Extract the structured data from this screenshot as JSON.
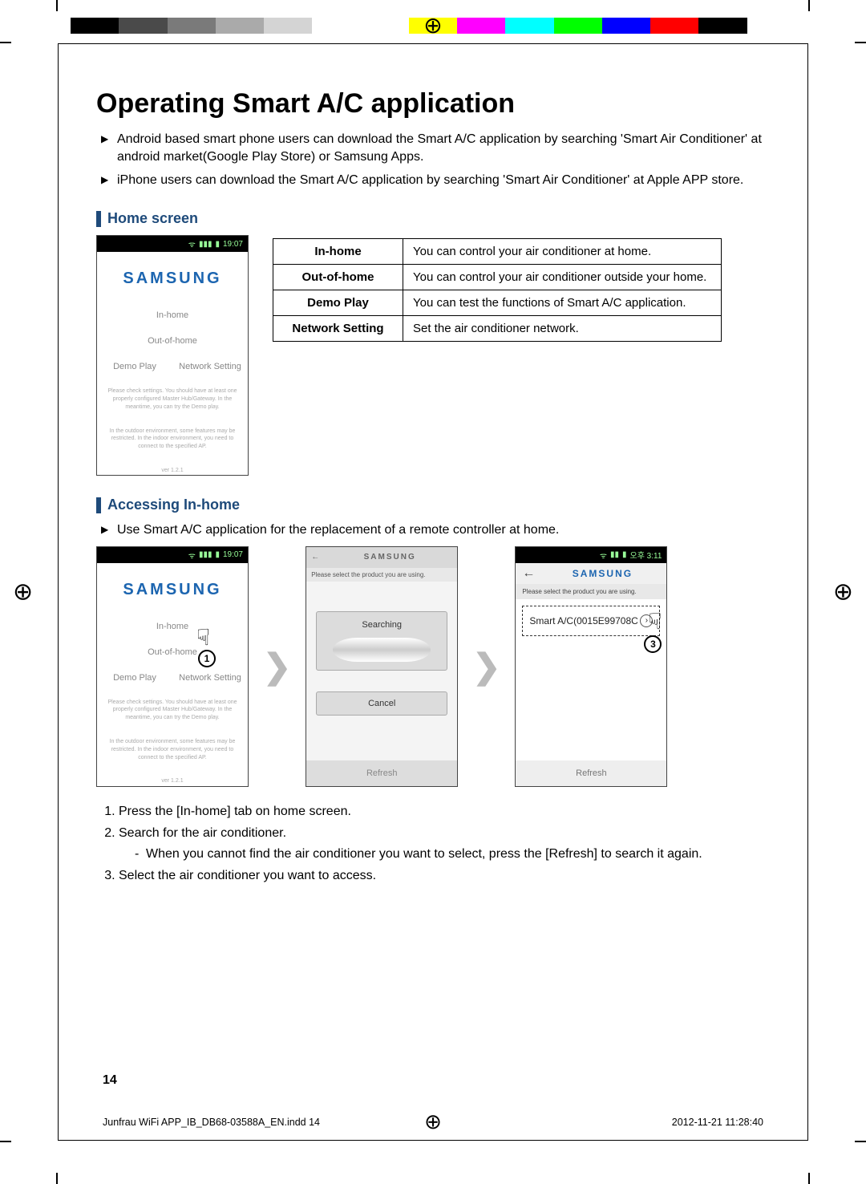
{
  "colorbar": [
    "#000000",
    "#4a4a4a",
    "#7a7a7a",
    "#aaaaaa",
    "#d4d4d4",
    "#ffffff",
    "",
    "#ffff00",
    "#ff00ff",
    "#00ffff",
    "#00ff00",
    "#0000ff",
    "#ff0000",
    "#000000",
    "#ffffff"
  ],
  "title": "Operating Smart A/C application",
  "intro": [
    "Android based smart phone users can download the Smart A/C application by searching 'Smart Air Conditioner' at android market(Google Play Store) or Samsung Apps.",
    "iPhone users can download the Smart A/C application by searching 'Smart Air Conditioner' at Apple APP store."
  ],
  "section1": {
    "heading": "Home screen",
    "phone": {
      "time": "19:07",
      "brand": "SAMSUNG",
      "btn_inhome": "In-home",
      "btn_outhome": "Out-of-home",
      "btn_demo": "Demo Play",
      "btn_net": "Network Setting",
      "notice1": "Please check settings.\nYou should have at least one properly configured Master Hub/Gateway.\nIn the meantime, you can try the Demo play.",
      "notice2": "In the outdoor environment, some features may be restricted. In the indoor environment, you need to connect to the specified AP.",
      "ver": "ver 1.2.1"
    },
    "table": [
      {
        "k": "In-home",
        "v": "You can control your air conditioner at home."
      },
      {
        "k": "Out-of-home",
        "v": "You can control your air conditioner outside your home."
      },
      {
        "k": "Demo Play",
        "v": "You can test the functions of Smart A/C application."
      },
      {
        "k": "Network Setting",
        "v": "Set the air conditioner network."
      }
    ]
  },
  "section2": {
    "heading": "Accessing In-home",
    "bullet": "Use Smart A/C application for the replacement of a remote controller at home.",
    "phone2": {
      "brand": "SAMSUNG",
      "prompt": "Please select the product you are using.",
      "searching": "Searching",
      "cancel": "Cancel",
      "refresh": "Refresh"
    },
    "phone3": {
      "time": "오후 3:11",
      "brand": "SAMSUNG",
      "prompt": "Please select the product you are using.",
      "device": "Smart A/C(0015E99708C",
      "refresh": "Refresh"
    },
    "steps": [
      "Press the [In-home] tab on home screen.",
      "Search for the air conditioner.",
      "Select the air conditioner you want to access."
    ],
    "substep": "When you cannot find the air conditioner you want to select, press the [Refresh] to search it again."
  },
  "page_number": "14",
  "footer_left": "Junfrau WiFi APP_IB_DB68-03588A_EN.indd   14",
  "footer_right": "2012-11-21   11:28:40",
  "accent_color": "#1e4a7a",
  "samsung_color": "#1c65b0"
}
